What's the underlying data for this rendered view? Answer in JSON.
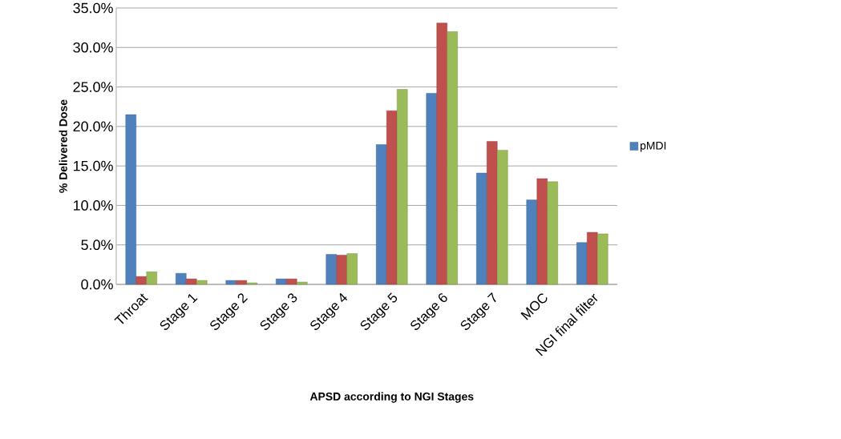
{
  "chart_data": {
    "type": "bar",
    "xlabel": "**APSD according to NGI Stages**",
    "ylabel": "**% Delivered Dose**",
    "categories": [
      "Throat",
      "Stage 1",
      "Stage 2",
      "Stage 3",
      "Stage 4",
      "Stage 5",
      "Stage 6",
      "Stage 7",
      "MOC",
      "NGI final filter"
    ],
    "series": [
      {
        "name": "pMDI",
        "color": "#4f81bd",
        "values": [
          21.5,
          1.4,
          0.5,
          0.7,
          3.8,
          17.7,
          24.2,
          14.1,
          10.7,
          5.3
        ]
      },
      {
        "color": "#c0504d",
        "values": [
          1.0,
          0.7,
          0.5,
          0.7,
          3.7,
          22.0,
          33.1,
          18.1,
          13.4,
          6.6
        ]
      },
      {
        "color": "#9bbb59",
        "values": [
          1.6,
          0.5,
          0.2,
          0.3,
          3.9,
          24.7,
          32.0,
          17.0,
          13.0,
          6.4
        ]
      }
    ],
    "ylim": [
      0,
      35
    ],
    "yticks": [
      {
        "value": 0,
        "label": "0.0%"
      },
      {
        "value": 5,
        "label": "5.0%"
      },
      {
        "value": 10,
        "label": "10.0%"
      },
      {
        "value": 15,
        "label": "15.0%"
      },
      {
        "value": 20,
        "label": "20.0%"
      },
      {
        "value": 25,
        "label": "25.0%"
      },
      {
        "value": 30,
        "label": "30.0%"
      },
      {
        "value": 35,
        "label": "35.0%"
      }
    ],
    "grid": "y",
    "legend": "right"
  }
}
